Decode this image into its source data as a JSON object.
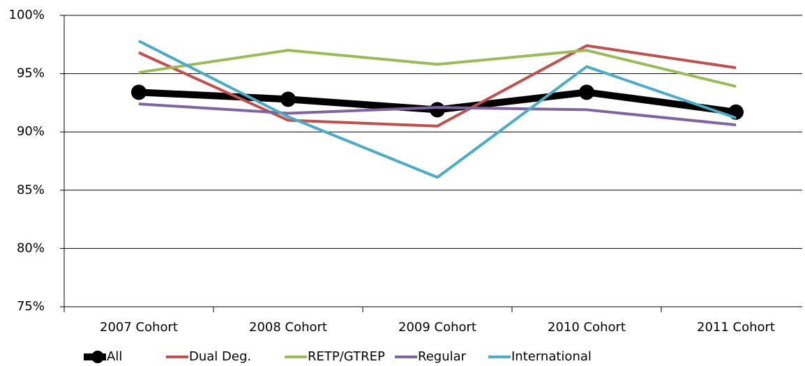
{
  "chart_data": {
    "type": "line",
    "categories": [
      "2007 Cohort",
      "2008 Cohort",
      "2009 Cohort",
      "2010 Cohort",
      "2011 Cohort"
    ],
    "series": [
      {
        "name": "All",
        "color": "#000000",
        "values": [
          93.4,
          92.8,
          91.9,
          93.4,
          91.7
        ]
      },
      {
        "name": "Dual Deg.",
        "color": "#c0504d",
        "values": [
          96.8,
          91.0,
          90.5,
          97.4,
          95.5
        ]
      },
      {
        "name": "RETP/GTREP",
        "color": "#9bbb59",
        "values": [
          95.1,
          97.0,
          95.8,
          97.0,
          93.9
        ]
      },
      {
        "name": "Regular",
        "color": "#8064a2",
        "values": [
          92.4,
          91.6,
          92.1,
          91.9,
          90.6
        ]
      },
      {
        "name": "International",
        "color": "#4bacc6",
        "values": [
          97.8,
          91.3,
          86.1,
          95.6,
          91.2
        ]
      }
    ],
    "ylim": [
      75,
      100
    ],
    "yticks": [
      {
        "value": 75,
        "label": "75%"
      },
      {
        "value": 80,
        "label": "80%"
      },
      {
        "value": 85,
        "label": "85%"
      },
      {
        "value": 90,
        "label": "90%"
      },
      {
        "value": 95,
        "label": "95%"
      },
      {
        "value": 100,
        "label": "100%"
      }
    ],
    "grid": true
  }
}
